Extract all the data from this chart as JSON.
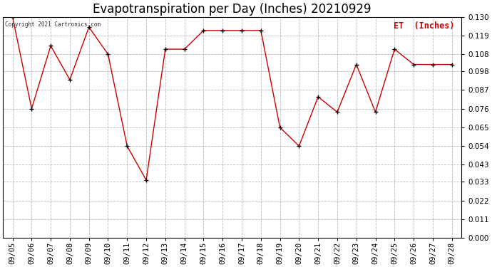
{
  "title": "Evapotranspiration per Day (Inches) 20210929",
  "copyright_text": "Copyright 2021 Cartronics.com",
  "legend_label": "ET  (Inches)",
  "dates": [
    "09/05",
    "09/06",
    "09/07",
    "09/08",
    "09/09",
    "09/10",
    "09/11",
    "09/12",
    "09/13",
    "09/14",
    "09/15",
    "09/16",
    "09/17",
    "09/18",
    "09/19",
    "09/20",
    "09/21",
    "09/22",
    "09/23",
    "09/24",
    "09/25",
    "09/26",
    "09/27",
    "09/28"
  ],
  "values": [
    0.13,
    0.076,
    0.113,
    0.093,
    0.124,
    0.108,
    0.054,
    0.034,
    0.111,
    0.111,
    0.122,
    0.122,
    0.122,
    0.122,
    0.065,
    0.054,
    0.083,
    0.074,
    0.102,
    0.074,
    0.111,
    0.102,
    0.102,
    0.102
  ],
  "line_color": "#cc0000",
  "marker_color": "#000000",
  "background_color": "#ffffff",
  "grid_color": "#aaaaaa",
  "ylim": [
    0.0,
    0.13
  ],
  "yticks": [
    0.0,
    0.011,
    0.022,
    0.033,
    0.043,
    0.054,
    0.065,
    0.076,
    0.087,
    0.098,
    0.108,
    0.119,
    0.13
  ],
  "title_fontsize": 12,
  "tick_fontsize": 7.5,
  "legend_color": "#cc0000",
  "fig_width": 6.9,
  "fig_height": 3.75
}
